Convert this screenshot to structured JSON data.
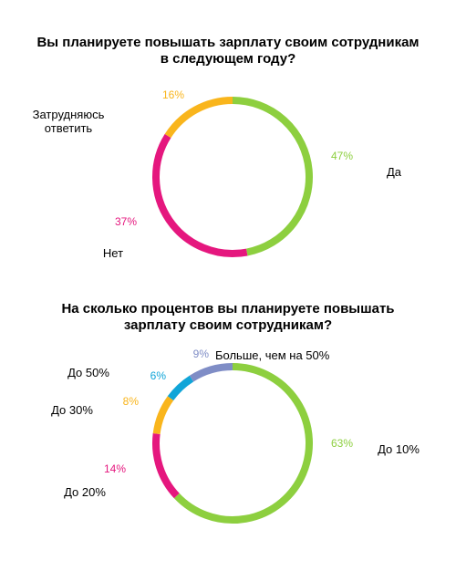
{
  "chart_data": [
    {
      "type": "pie",
      "title": "Вы планируете повышать зарплату своим сотрудникам в следующем году?",
      "title_lines": [
        "Вы планируете повышать зарплату своим сотрудникам",
        "в следующем году?"
      ],
      "slices": [
        {
          "label": "Да",
          "value": 47,
          "value_label": "47%",
          "color": "#8dcf3f"
        },
        {
          "label": "Нет",
          "value": 37,
          "value_label": "37%",
          "color": "#e5177e"
        },
        {
          "label": "Затрудняюсь ответить",
          "label_lines": [
            "Затрудняюсь",
            "ответить"
          ],
          "value": 16,
          "value_label": "16%",
          "color": "#f9b51c"
        }
      ]
    },
    {
      "type": "pie",
      "title": "На сколько процентов вы планируете повышать зарплату своим сотрудникам?",
      "title_lines": [
        "На сколько процентов вы планируете повышать",
        "зарплату своим сотрудникам?"
      ],
      "slices": [
        {
          "label": "До 10%",
          "value": 63,
          "value_label": "63%",
          "color": "#8dcf3f"
        },
        {
          "label": "До 20%",
          "value": 14,
          "value_label": "14%",
          "color": "#e5177e"
        },
        {
          "label": "До 30%",
          "value": 8,
          "value_label": "8%",
          "color": "#f9b51c"
        },
        {
          "label": "До 50%",
          "value": 6,
          "value_label": "6%",
          "color": "#10a5d8"
        },
        {
          "label": "Больше, чем на 50%",
          "value": 9,
          "value_label": "9%",
          "color": "#7f8dc6"
        }
      ]
    }
  ]
}
